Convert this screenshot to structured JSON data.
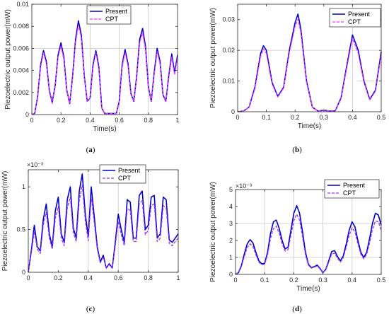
{
  "chart_data": [
    {
      "type": "line",
      "caption_prefix": "(",
      "caption_letter": "a",
      "caption_suffix": ")",
      "xlabel": "Time(s)",
      "ylabel": "Piezoelectric output power(mW)",
      "xlim": [
        0,
        1
      ],
      "ylim": [
        0,
        0.01
      ],
      "xticks": [
        0,
        0.2,
        0.4,
        0.6,
        0.8,
        1
      ],
      "xtick_labels": [
        "0",
        "0.2",
        "0.4",
        "0.6",
        "0.8",
        "1"
      ],
      "yticks": [
        0,
        0.002,
        0.004,
        0.006,
        0.008,
        0.01
      ],
      "ytick_labels": [
        "0",
        "0.002",
        "0.004",
        "0.006",
        "0.008",
        "0.01"
      ],
      "multiplier": "",
      "legend_position": "top-center",
      "grid": "partial",
      "series": [
        {
          "name": "Present",
          "color": "#0000cc",
          "style": "solid",
          "x": [
            0,
            0.02,
            0.04,
            0.06,
            0.08,
            0.1,
            0.12,
            0.14,
            0.16,
            0.18,
            0.2,
            0.22,
            0.24,
            0.26,
            0.28,
            0.3,
            0.32,
            0.34,
            0.36,
            0.38,
            0.4,
            0.42,
            0.44,
            0.46,
            0.48,
            0.5,
            0.52,
            0.54,
            0.56,
            0.58,
            0.6,
            0.62,
            0.64,
            0.66,
            0.68,
            0.7,
            0.72,
            0.74,
            0.76,
            0.78,
            0.8,
            0.82,
            0.84,
            0.86,
            0.88,
            0.9,
            0.92,
            0.94,
            0.96,
            0.98,
            1
          ],
          "y": [
            0,
            0.0001,
            0.0016,
            0.0045,
            0.0058,
            0.0048,
            0.0022,
            0.0011,
            0.0026,
            0.0054,
            0.0065,
            0.0052,
            0.0022,
            0.001,
            0.0035,
            0.0068,
            0.0085,
            0.0072,
            0.0035,
            0.0012,
            0.0015,
            0.0045,
            0.0058,
            0.0043,
            0.0006,
            0.0001,
            0.0001,
            0.0001,
            0.0001,
            0.0001,
            0.0012,
            0.0045,
            0.0059,
            0.0046,
            0.0019,
            0.0012,
            0.0035,
            0.0068,
            0.0078,
            0.0062,
            0.0025,
            0.0012,
            0.0038,
            0.006,
            0.0048,
            0.0018,
            0.0012,
            0.0035,
            0.0055,
            0.0038,
            0.0054
          ]
        },
        {
          "name": "CPT",
          "color": "#ff33ff",
          "style": "dashed",
          "x": [
            0,
            0.02,
            0.04,
            0.06,
            0.08,
            0.1,
            0.12,
            0.14,
            0.16,
            0.18,
            0.2,
            0.22,
            0.24,
            0.26,
            0.28,
            0.3,
            0.32,
            0.34,
            0.36,
            0.38,
            0.4,
            0.42,
            0.44,
            0.46,
            0.48,
            0.5,
            0.52,
            0.54,
            0.56,
            0.58,
            0.6,
            0.62,
            0.64,
            0.66,
            0.68,
            0.7,
            0.72,
            0.74,
            0.76,
            0.78,
            0.8,
            0.82,
            0.84,
            0.86,
            0.88,
            0.9,
            0.92,
            0.94,
            0.96,
            0.98,
            1
          ],
          "y": [
            0,
            0.0001,
            0.0015,
            0.0043,
            0.0056,
            0.0046,
            0.0021,
            0.001,
            0.0025,
            0.0052,
            0.0062,
            0.005,
            0.0021,
            0.001,
            0.0033,
            0.0065,
            0.0081,
            0.0069,
            0.0034,
            0.0012,
            0.0015,
            0.0043,
            0.0056,
            0.0041,
            0.0006,
            0.0001,
            0.0001,
            0.0001,
            0.0001,
            0.0001,
            0.0011,
            0.0043,
            0.0056,
            0.0044,
            0.0018,
            0.0012,
            0.0033,
            0.0065,
            0.0074,
            0.0059,
            0.0024,
            0.0012,
            0.0036,
            0.0057,
            0.0046,
            0.0017,
            0.0012,
            0.0033,
            0.0052,
            0.0036,
            0.0052
          ]
        }
      ]
    },
    {
      "type": "line",
      "caption_prefix": "(",
      "caption_letter": "b",
      "caption_suffix": ")",
      "xlabel": "Time(s)",
      "ylabel": "Piezoelectric output power(mW)",
      "xlim": [
        0,
        0.5
      ],
      "ylim": [
        0,
        0.035
      ],
      "xticks": [
        0,
        0.1,
        0.2,
        0.3,
        0.4,
        0.5
      ],
      "xtick_labels": [
        "0",
        "0.1",
        "0.2",
        "0.3",
        "0.4",
        "0.5"
      ],
      "yticks": [
        0,
        0.01,
        0.02,
        0.03
      ],
      "ytick_labels": [
        "0",
        "0.01",
        "0.02",
        "0.03"
      ],
      "multiplier": "",
      "legend_position": "top-right",
      "grid": "partial",
      "series": [
        {
          "name": "Present",
          "color": "#0000cc",
          "style": "solid",
          "x": [
            0,
            0.02,
            0.04,
            0.06,
            0.08,
            0.09,
            0.1,
            0.12,
            0.14,
            0.16,
            0.18,
            0.2,
            0.21,
            0.22,
            0.24,
            0.26,
            0.28,
            0.3,
            0.32,
            0.34,
            0.36,
            0.38,
            0.4,
            0.42,
            0.44,
            0.46,
            0.48,
            0.5
          ],
          "y": [
            0,
            0.0002,
            0.0015,
            0.008,
            0.019,
            0.0215,
            0.02,
            0.0095,
            0.005,
            0.008,
            0.02,
            0.029,
            0.0318,
            0.027,
            0.01,
            0.0015,
            0.0002,
            0.0005,
            0.0002,
            0.0003,
            0.0045,
            0.015,
            0.025,
            0.02,
            0.01,
            0.004,
            0.007,
            0.0195
          ]
        },
        {
          "name": "CPT",
          "color": "#ff33ff",
          "style": "dashed",
          "x": [
            0,
            0.02,
            0.04,
            0.06,
            0.08,
            0.09,
            0.1,
            0.12,
            0.14,
            0.16,
            0.18,
            0.2,
            0.21,
            0.22,
            0.24,
            0.26,
            0.28,
            0.3,
            0.32,
            0.34,
            0.36,
            0.38,
            0.4,
            0.42,
            0.44,
            0.46,
            0.48,
            0.5
          ],
          "y": [
            0,
            0.0002,
            0.0014,
            0.0075,
            0.018,
            0.0205,
            0.019,
            0.009,
            0.0048,
            0.0077,
            0.0192,
            0.0278,
            0.0301,
            0.0258,
            0.0095,
            0.0014,
            0.0002,
            0.0005,
            0.0002,
            0.0003,
            0.0042,
            0.0143,
            0.0238,
            0.019,
            0.0095,
            0.0038,
            0.0067,
            0.0185
          ]
        }
      ]
    },
    {
      "type": "line",
      "caption_prefix": "(",
      "caption_letter": "c",
      "caption_suffix": ")",
      "xlabel": "",
      "ylabel": "Piezoelectric output power(mW)",
      "xlim": [
        0,
        1
      ],
      "ylim": [
        0,
        1.2
      ],
      "xticks": [
        0,
        0.2,
        0.4,
        0.6,
        0.8,
        1
      ],
      "xtick_labels": [
        "0",
        "0.2",
        "0.4",
        "0.6",
        "0.8",
        "1"
      ],
      "yticks": [
        0,
        0.5,
        1
      ],
      "ytick_labels": [
        "0",
        "0.5",
        "1"
      ],
      "multiplier": "×10⁻³",
      "legend_position": "top-center",
      "grid": "partial",
      "series": [
        {
          "name": "Present",
          "color": "#0000cc",
          "style": "solid",
          "x": [
            0,
            0.02,
            0.04,
            0.06,
            0.08,
            0.1,
            0.12,
            0.14,
            0.16,
            0.18,
            0.2,
            0.22,
            0.24,
            0.26,
            0.28,
            0.3,
            0.32,
            0.34,
            0.36,
            0.38,
            0.4,
            0.42,
            0.44,
            0.46,
            0.48,
            0.5,
            0.52,
            0.54,
            0.56,
            0.58,
            0.6,
            0.62,
            0.64,
            0.66,
            0.68,
            0.7,
            0.72,
            0.74,
            0.76,
            0.78,
            0.8,
            0.82,
            0.84,
            0.86,
            0.88,
            0.9,
            0.92,
            0.94,
            0.96,
            0.98,
            1
          ],
          "y": [
            0,
            0.25,
            0.55,
            0.3,
            0.25,
            0.62,
            0.8,
            0.45,
            0.3,
            0.72,
            0.88,
            0.45,
            0.35,
            0.85,
            1.0,
            0.52,
            0.4,
            0.95,
            1.15,
            0.68,
            0.42,
            1.0,
            0.65,
            0.3,
            0.12,
            0.2,
            0.05,
            0.1,
            0.05,
            0.35,
            0.68,
            0.5,
            0.35,
            0.85,
            0.82,
            0.4,
            0.4,
            0.9,
            0.95,
            0.5,
            0.55,
            0.88,
            0.9,
            0.4,
            0.45,
            0.88,
            0.85,
            0.38,
            0.35,
            0.4,
            0.45
          ]
        },
        {
          "name": "CPT",
          "color": "#9933ff",
          "style": "dashed",
          "x": [
            0,
            0.02,
            0.04,
            0.06,
            0.08,
            0.1,
            0.12,
            0.14,
            0.16,
            0.18,
            0.2,
            0.22,
            0.24,
            0.26,
            0.28,
            0.3,
            0.32,
            0.34,
            0.36,
            0.38,
            0.4,
            0.42,
            0.44,
            0.46,
            0.48,
            0.5,
            0.52,
            0.54,
            0.56,
            0.58,
            0.6,
            0.62,
            0.64,
            0.66,
            0.68,
            0.7,
            0.72,
            0.74,
            0.76,
            0.78,
            0.8,
            0.82,
            0.84,
            0.86,
            0.88,
            0.9,
            0.92,
            0.94,
            0.96,
            0.98,
            1
          ],
          "y": [
            0,
            0.22,
            0.48,
            0.27,
            0.22,
            0.55,
            0.7,
            0.4,
            0.27,
            0.63,
            0.77,
            0.4,
            0.31,
            0.75,
            0.88,
            0.46,
            0.36,
            0.84,
            1.02,
            0.6,
            0.37,
            0.88,
            0.58,
            0.27,
            0.11,
            0.18,
            0.05,
            0.09,
            0.05,
            0.31,
            0.6,
            0.44,
            0.31,
            0.75,
            0.72,
            0.36,
            0.36,
            0.8,
            0.84,
            0.44,
            0.49,
            0.78,
            0.8,
            0.36,
            0.4,
            0.78,
            0.75,
            0.34,
            0.31,
            0.36,
            0.4
          ]
        }
      ]
    },
    {
      "type": "line",
      "caption_prefix": "(",
      "caption_letter": "d",
      "caption_suffix": ")",
      "xlabel": "Time(s)",
      "ylabel": "Piezoelectric output power(mW)",
      "xlim": [
        0,
        0.5
      ],
      "ylim": [
        0,
        5
      ],
      "xticks": [
        0,
        0.1,
        0.2,
        0.3,
        0.4,
        0.5
      ],
      "xtick_labels": [
        "0",
        "0.1",
        "0.2",
        "0.3",
        "0.4",
        "0.5"
      ],
      "yticks": [
        0,
        1,
        2,
        3,
        4,
        5
      ],
      "ytick_labels": [
        "0",
        "1",
        "2",
        "3",
        "4",
        "5"
      ],
      "multiplier": "×10⁻³",
      "legend_position": "top-right",
      "grid": "partial",
      "series": [
        {
          "name": "Present",
          "color": "#0000cc",
          "style": "solid",
          "x": [
            0,
            0.01,
            0.02,
            0.03,
            0.04,
            0.05,
            0.06,
            0.07,
            0.08,
            0.09,
            0.1,
            0.11,
            0.12,
            0.13,
            0.14,
            0.15,
            0.16,
            0.17,
            0.18,
            0.19,
            0.2,
            0.21,
            0.22,
            0.23,
            0.24,
            0.25,
            0.26,
            0.27,
            0.28,
            0.29,
            0.3,
            0.31,
            0.32,
            0.33,
            0.34,
            0.35,
            0.36,
            0.37,
            0.38,
            0.39,
            0.4,
            0.41,
            0.42,
            0.43,
            0.44,
            0.45,
            0.46,
            0.47,
            0.48,
            0.49,
            0.5
          ],
          "y": [
            0,
            0.1,
            0.5,
            1.2,
            1.8,
            2.05,
            1.85,
            1.3,
            0.8,
            0.62,
            0.65,
            1.3,
            2.4,
            3.1,
            3.2,
            2.7,
            2.0,
            1.5,
            1.6,
            2.6,
            3.6,
            4.05,
            3.6,
            2.5,
            1.3,
            0.6,
            0.4,
            0.45,
            0.55,
            0.35,
            0.1,
            0.3,
            0.8,
            1.35,
            1.4,
            1.05,
            0.8,
            1.1,
            1.8,
            2.6,
            3.1,
            2.8,
            2.0,
            1.3,
            1.0,
            1.3,
            2.1,
            3.0,
            3.6,
            3.5,
            2.9
          ]
        },
        {
          "name": "CPT",
          "color": "#9933ff",
          "style": "dashed",
          "x": [
            0,
            0.01,
            0.02,
            0.03,
            0.04,
            0.05,
            0.06,
            0.07,
            0.08,
            0.09,
            0.1,
            0.11,
            0.12,
            0.13,
            0.14,
            0.15,
            0.16,
            0.17,
            0.18,
            0.19,
            0.2,
            0.21,
            0.22,
            0.23,
            0.24,
            0.25,
            0.26,
            0.27,
            0.28,
            0.29,
            0.3,
            0.31,
            0.32,
            0.33,
            0.34,
            0.35,
            0.36,
            0.37,
            0.38,
            0.39,
            0.4,
            0.41,
            0.42,
            0.43,
            0.44,
            0.45,
            0.46,
            0.47,
            0.48,
            0.49,
            0.5
          ],
          "y": [
            0,
            0.09,
            0.44,
            1.05,
            1.58,
            1.8,
            1.63,
            1.15,
            0.72,
            0.57,
            0.6,
            1.15,
            2.1,
            2.7,
            2.85,
            2.4,
            1.8,
            1.38,
            1.45,
            2.3,
            3.15,
            3.55,
            3.2,
            2.2,
            1.15,
            0.55,
            0.37,
            0.42,
            0.5,
            0.32,
            0.09,
            0.27,
            0.72,
            1.2,
            1.25,
            0.95,
            0.73,
            1.0,
            1.6,
            2.3,
            2.75,
            2.5,
            1.8,
            1.18,
            0.92,
            1.18,
            1.85,
            2.65,
            3.15,
            3.1,
            2.6
          ]
        }
      ]
    }
  ]
}
